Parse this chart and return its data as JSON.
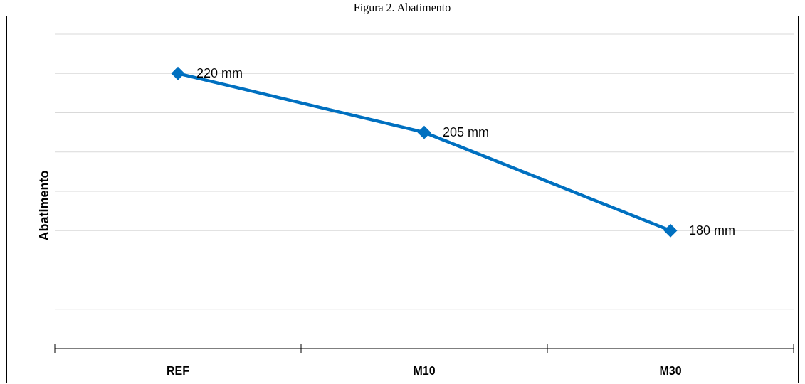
{
  "chart_data": {
    "type": "line",
    "title": "Figura 2. Abatimento",
    "ylabel": "Abatimento",
    "categories": [
      "REF",
      "M10",
      "M30"
    ],
    "series": [
      {
        "color": "#0070c0",
        "values": [
          220,
          205,
          180
        ],
        "value_labels": [
          "220 mm",
          "205 mm",
          "180 mm"
        ]
      }
    ],
    "ylim": [
      150,
      230
    ],
    "yticks": [
      {
        "value": 150,
        "label": null
      },
      {
        "value": 160,
        "label": null
      },
      {
        "value": 170,
        "label": null
      },
      {
        "value": 180,
        "label": null
      },
      {
        "value": 190,
        "label": null
      },
      {
        "value": 200,
        "label": null
      },
      {
        "value": 210,
        "label": null
      },
      {
        "value": 220,
        "label": null
      },
      {
        "value": 230,
        "label": null
      }
    ],
    "grid": "y",
    "marker": "diamond",
    "line_style": "solid"
  }
}
